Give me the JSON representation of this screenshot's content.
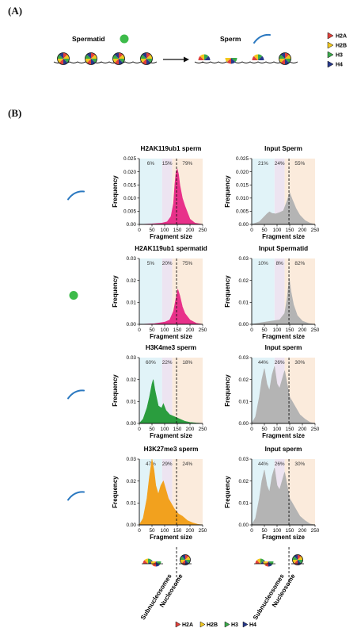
{
  "panel_a": {
    "label": "(A)",
    "spermatid_label": "Spermatid",
    "sperm_label": "Sperm",
    "legend": [
      "H2A",
      "H2B",
      "H3",
      "H4"
    ]
  },
  "panel_b": {
    "label": "(B)",
    "xlabel": "Fragment size",
    "ylabel": "Frequency",
    "bottom_labels": [
      "Subnucleosomes",
      "Nucleosome"
    ],
    "bottom_legend": [
      "H2A",
      "H2B",
      "H3",
      "H4"
    ]
  },
  "colors": {
    "H2A": "#e0403a",
    "H2B": "#f2c81e",
    "H3": "#3aaa4a",
    "H4": "#26388a",
    "spermatid_dot": "#3dbb4a",
    "sperm_icon": "#2a78c0",
    "bg_sub": "#e1f3f8",
    "bg_mid": "#ede4f1",
    "bg_nuc": "#fbebdc"
  },
  "chart_data": [
    {
      "type": "area",
      "title": "H2AK119ub1 sperm",
      "color": "#e8318a",
      "xlabel": "Fragment size",
      "ylabel": "Frequency",
      "xlim": [
        0,
        250
      ],
      "ylim": [
        0,
        0.025
      ],
      "xticks": [
        "0",
        "50",
        "100",
        "150",
        "200",
        "250"
      ],
      "yticks": [
        "0.00",
        "0.005",
        "0.010",
        "0.015",
        "0.020",
        "0.025"
      ],
      "percentages": [
        "6%",
        "15%",
        "79%"
      ],
      "x": [
        0,
        50,
        90,
        110,
        125,
        135,
        140,
        145,
        150,
        155,
        160,
        170,
        180,
        200,
        220,
        250
      ],
      "y": [
        0,
        0.0002,
        0.0005,
        0.001,
        0.003,
        0.008,
        0.015,
        0.02,
        0.021,
        0.019,
        0.015,
        0.01,
        0.007,
        0.002,
        0.0005,
        0
      ]
    },
    {
      "type": "area",
      "title": "Input Sperm",
      "color": "#b4b4b4",
      "xlabel": "Fragment size",
      "ylabel": "Frequency",
      "xlim": [
        0,
        250
      ],
      "ylim": [
        0,
        0.025
      ],
      "xticks": [
        "0",
        "50",
        "100",
        "150",
        "200",
        "250"
      ],
      "yticks": [
        "0.00",
        "0.005",
        "0.010",
        "0.015",
        "0.020",
        "0.025"
      ],
      "percentages": [
        "21%",
        "24%",
        "55%"
      ],
      "x": [
        0,
        30,
        50,
        60,
        70,
        80,
        95,
        110,
        125,
        140,
        150,
        160,
        175,
        190,
        210,
        230,
        250
      ],
      "y": [
        0,
        0.001,
        0.003,
        0.004,
        0.0048,
        0.0042,
        0.004,
        0.0045,
        0.0052,
        0.009,
        0.012,
        0.0095,
        0.006,
        0.0035,
        0.0015,
        0.0005,
        0
      ]
    },
    {
      "type": "area",
      "title": "H2AK119ub1 spermatid",
      "color": "#e8318a",
      "xlabel": "Fragment size",
      "ylabel": "Frequency",
      "xlim": [
        0,
        250
      ],
      "ylim": [
        0,
        0.03
      ],
      "xticks": [
        "0",
        "50",
        "100",
        "150",
        "200",
        "250"
      ],
      "yticks": [
        "0.00",
        "0.01",
        "0.02",
        "0.03"
      ],
      "percentages": [
        "5%",
        "20%",
        "75%"
      ],
      "x": [
        0,
        60,
        100,
        120,
        135,
        145,
        152,
        160,
        170,
        180,
        200,
        225,
        250
      ],
      "y": [
        0,
        0.0003,
        0.001,
        0.002,
        0.006,
        0.012,
        0.016,
        0.013,
        0.008,
        0.005,
        0.002,
        0.0005,
        0
      ]
    },
    {
      "type": "area",
      "title": "Input Spermatid",
      "color": "#b4b4b4",
      "xlabel": "Fragment size",
      "ylabel": "Frequency",
      "xlim": [
        0,
        250
      ],
      "ylim": [
        0,
        0.03
      ],
      "xticks": [
        "0",
        "50",
        "100",
        "150",
        "200",
        "250"
      ],
      "yticks": [
        "0.00",
        "0.01",
        "0.02",
        "0.03"
      ],
      "percentages": [
        "10%",
        "8%",
        "82%"
      ],
      "x": [
        0,
        40,
        80,
        110,
        130,
        140,
        148,
        155,
        165,
        180,
        200,
        225,
        250
      ],
      "y": [
        0,
        0.0008,
        0.0015,
        0.002,
        0.005,
        0.012,
        0.021,
        0.015,
        0.009,
        0.004,
        0.0015,
        0.0004,
        0
      ]
    },
    {
      "type": "area",
      "title": "H3K4me3 sperm",
      "color": "#2a9d3e",
      "xlabel": "Fragment size",
      "ylabel": "Frequency",
      "xlim": [
        0,
        250
      ],
      "ylim": [
        0,
        0.03
      ],
      "xticks": [
        "0",
        "50",
        "100",
        "150",
        "200",
        "250"
      ],
      "yticks": [
        "0.00",
        "0.01",
        "0.02",
        "0.03"
      ],
      "percentages": [
        "60%",
        "22%",
        "18%"
      ],
      "x": [
        0,
        15,
        30,
        40,
        50,
        55,
        62,
        75,
        88,
        95,
        105,
        120,
        140,
        160,
        180,
        200,
        225,
        250
      ],
      "y": [
        0,
        0.002,
        0.007,
        0.012,
        0.018,
        0.02,
        0.015,
        0.008,
        0.007,
        0.009,
        0.006,
        0.004,
        0.003,
        0.002,
        0.001,
        0.0005,
        0.0002,
        0
      ]
    },
    {
      "type": "area",
      "title": "Input sperm",
      "color": "#b4b4b4",
      "xlabel": "Fragment size",
      "ylabel": "Frequency",
      "xlim": [
        0,
        250
      ],
      "ylim": [
        0,
        0.03
      ],
      "xticks": [
        "0",
        "50",
        "100",
        "150",
        "200",
        "250"
      ],
      "yticks": [
        "0.00",
        "0.01",
        "0.02",
        "0.03"
      ],
      "percentages": [
        "44%",
        "26%",
        "30%"
      ],
      "x": [
        0,
        15,
        30,
        40,
        50,
        60,
        70,
        80,
        90,
        100,
        110,
        120,
        130,
        140,
        150,
        160,
        175,
        190,
        210,
        230,
        250
      ],
      "y": [
        0,
        0.003,
        0.012,
        0.02,
        0.025,
        0.018,
        0.015,
        0.022,
        0.026,
        0.018,
        0.016,
        0.02,
        0.024,
        0.018,
        0.012,
        0.01,
        0.007,
        0.004,
        0.002,
        0.0005,
        0
      ]
    },
    {
      "type": "area",
      "title": "H3K27me3 sperm",
      "color": "#f2a11e",
      "xlabel": "Fragment size",
      "ylabel": "Frequency",
      "xlim": [
        0,
        250
      ],
      "ylim": [
        0,
        0.03
      ],
      "xticks": [
        "0",
        "50",
        "100",
        "150",
        "200",
        "250"
      ],
      "yticks": [
        "0.00",
        "0.01",
        "0.02",
        "0.03"
      ],
      "percentages": [
        "47%",
        "29%",
        "24%"
      ],
      "x": [
        0,
        15,
        30,
        40,
        50,
        58,
        65,
        75,
        85,
        95,
        105,
        115,
        125,
        140,
        155,
        170,
        190,
        210,
        230,
        250
      ],
      "y": [
        0,
        0.003,
        0.012,
        0.022,
        0.03,
        0.025,
        0.018,
        0.014,
        0.018,
        0.02,
        0.016,
        0.012,
        0.01,
        0.007,
        0.005,
        0.004,
        0.002,
        0.001,
        0.0003,
        0
      ]
    },
    {
      "type": "area",
      "title": "Input sperm",
      "color": "#b4b4b4",
      "xlabel": "Fragment size",
      "ylabel": "Frequency",
      "xlim": [
        0,
        250
      ],
      "ylim": [
        0,
        0.03
      ],
      "xticks": [
        "0",
        "50",
        "100",
        "150",
        "200",
        "250"
      ],
      "yticks": [
        "0.00",
        "0.01",
        "0.02",
        "0.03"
      ],
      "percentages": [
        "44%",
        "26%",
        "30%"
      ],
      "x": [
        0,
        15,
        30,
        40,
        50,
        60,
        70,
        80,
        90,
        100,
        110,
        120,
        130,
        140,
        150,
        160,
        175,
        190,
        210,
        230,
        250
      ],
      "y": [
        0,
        0.003,
        0.012,
        0.02,
        0.025,
        0.018,
        0.015,
        0.022,
        0.026,
        0.018,
        0.016,
        0.02,
        0.024,
        0.018,
        0.012,
        0.01,
        0.007,
        0.004,
        0.002,
        0.0005,
        0
      ]
    }
  ]
}
